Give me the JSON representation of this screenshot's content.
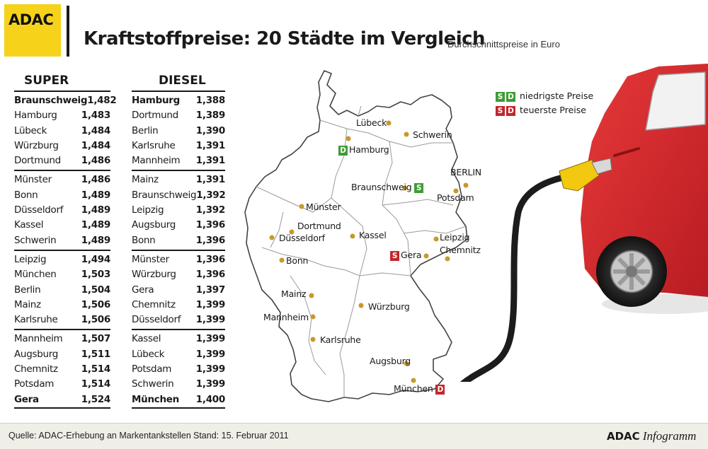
{
  "header": {
    "logo": "ADAC",
    "title": "Kraftstoffpreise: 20 Städte im Vergleich",
    "subtitle": "Durchschnittspreise in Euro"
  },
  "super": {
    "title": "SUPER",
    "rows": [
      {
        "city": "Braunschweig",
        "price": "1,482"
      },
      {
        "city": "Hamburg",
        "price": "1,483"
      },
      {
        "city": "Lübeck",
        "price": "1,484"
      },
      {
        "city": "Würzburg",
        "price": "1,484"
      },
      {
        "city": "Dortmund",
        "price": "1,486"
      },
      {
        "city": "Münster",
        "price": "1,486"
      },
      {
        "city": "Bonn",
        "price": "1,489"
      },
      {
        "city": "Düsseldorf",
        "price": "1,489"
      },
      {
        "city": "Kassel",
        "price": "1,489"
      },
      {
        "city": "Schwerin",
        "price": "1,489"
      },
      {
        "city": "Leipzig",
        "price": "1,494"
      },
      {
        "city": "München",
        "price": "1,503"
      },
      {
        "city": "Berlin",
        "price": "1,504"
      },
      {
        "city": "Mainz",
        "price": "1,506"
      },
      {
        "city": "Karlsruhe",
        "price": "1,506"
      },
      {
        "city": "Mannheim",
        "price": "1,507"
      },
      {
        "city": "Augsburg",
        "price": "1,511"
      },
      {
        "city": "Chemnitz",
        "price": "1,514"
      },
      {
        "city": "Potsdam",
        "price": "1,514"
      },
      {
        "city": "Gera",
        "price": "1,524"
      }
    ]
  },
  "diesel": {
    "title": "DIESEL",
    "rows": [
      {
        "city": "Hamburg",
        "price": "1,388"
      },
      {
        "city": "Dortmund",
        "price": "1,389"
      },
      {
        "city": "Berlin",
        "price": "1,390"
      },
      {
        "city": "Karlsruhe",
        "price": "1,391"
      },
      {
        "city": "Mannheim",
        "price": "1,391"
      },
      {
        "city": "Mainz",
        "price": "1,391"
      },
      {
        "city": "Braunschweig",
        "price": "1,392"
      },
      {
        "city": "Leipzig",
        "price": "1,392"
      },
      {
        "city": "Augsburg",
        "price": "1,396"
      },
      {
        "city": "Bonn",
        "price": "1,396"
      },
      {
        "city": "Münster",
        "price": "1,396"
      },
      {
        "city": "Würzburg",
        "price": "1,396"
      },
      {
        "city": "Gera",
        "price": "1,397"
      },
      {
        "city": "Chemnitz",
        "price": "1,399"
      },
      {
        "city": "Düsseldorf",
        "price": "1,399"
      },
      {
        "city": "Kassel",
        "price": "1,399"
      },
      {
        "city": "Lübeck",
        "price": "1,399"
      },
      {
        "city": "Potsdam",
        "price": "1,399"
      },
      {
        "city": "Schwerin",
        "price": "1,399"
      },
      {
        "city": "München",
        "price": "1,400"
      }
    ]
  },
  "legend": {
    "cheapest_s": "S",
    "cheapest_d": "D",
    "cheapest_label": "niedrigste Preise",
    "dearest_s": "S",
    "dearest_d": "D",
    "dearest_label": "teuerste Preise"
  },
  "map_labels": {
    "luebeck": "Lübeck",
    "schwerin": "Schwerin",
    "hamburg": "Hamburg",
    "hamburg_badge": "D",
    "berlin": "BERLIN",
    "potsdam": "Potsdam",
    "braunschweig": "Braunschweig",
    "braunschweig_badge": "S",
    "muenster": "Münster",
    "dortmund": "Dortmund",
    "duesseldorf": "Düsseldorf",
    "kassel": "Kassel",
    "leipzig": "Leipzig",
    "chemnitz": "Chemnitz",
    "gera": "Gera",
    "gera_badge": "S",
    "bonn": "Bonn",
    "mainz": "Mainz",
    "wuerzburg": "Würzburg",
    "mannheim": "Mannheim",
    "karlsruhe": "Karlsruhe",
    "augsburg": "Augsburg",
    "muenchen": "München",
    "muenchen_badge": "D"
  },
  "colors": {
    "logo_yellow": "#f6d31a",
    "cheapest_green": "#3e9c35",
    "dearest_red": "#c2262c",
    "city_dot": "#c7992a",
    "car_red": "#d7282c"
  },
  "footer": {
    "source": "Quelle: ADAC-Erhebung an Markentankstellen",
    "stand": "Stand: 15. Februar 2011",
    "credit_brand": "ADAC",
    "credit_product": "Infogramm"
  }
}
